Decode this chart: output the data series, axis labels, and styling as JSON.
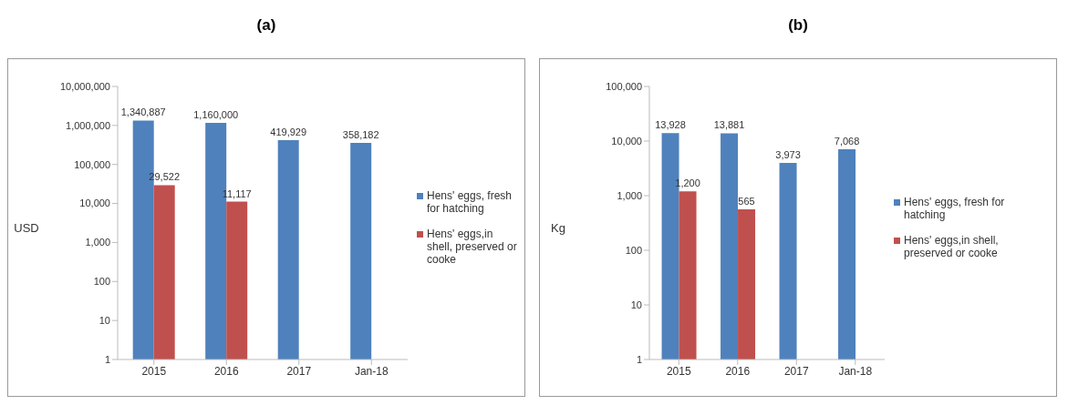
{
  "chart_data": [
    {
      "type": "bar",
      "title": "(a)",
      "ylabel": "USD",
      "categories": [
        "2015",
        "2016",
        "2017",
        "Jan-18"
      ],
      "series": [
        {
          "name": "Hens' eggs, fresh for hatching",
          "color": "#4f81bd",
          "values": [
            1340887,
            1160000,
            419929,
            358182
          ],
          "value_labels": [
            "1,340,887",
            "1,160,000",
            "419,929",
            "358,182"
          ]
        },
        {
          "name": "Hens' eggs,in shell, preserved or cooke",
          "color": "#c0504d",
          "values": [
            29522,
            11117,
            null,
            null
          ],
          "value_labels": [
            "29,522",
            "11,117",
            null,
            null
          ]
        }
      ],
      "log": "y",
      "ylim": [
        1,
        10000000
      ],
      "yticks": [
        1,
        {
          "value": 10,
          "label": "10"
        },
        {
          "value": 100,
          "label": "100"
        },
        {
          "value": 1000,
          "label": "1,000"
        },
        {
          "value": 10000,
          "label": "10,000"
        },
        {
          "value": 100000,
          "label": "100,000"
        },
        {
          "value": 1000000,
          "label": "1,000,000"
        },
        {
          "value": 10000000,
          "label": "10,000,000"
        }
      ],
      "legend": "right",
      "grid": false
    },
    {
      "type": "bar",
      "title": "(b)",
      "ylabel": "Kg",
      "categories": [
        "2015",
        "2016",
        "2017",
        "Jan-18"
      ],
      "series": [
        {
          "name": "Hens' eggs, fresh for hatching",
          "color": "#4f81bd",
          "values": [
            13928,
            13881,
            3973,
            7068
          ],
          "value_labels": [
            "13,928",
            "13,881",
            "3,973",
            "7,068"
          ]
        },
        {
          "name": "Hens' eggs,in shell, preserved or cooke",
          "color": "#c0504d",
          "values": [
            1200,
            565,
            null,
            null
          ],
          "value_labels": [
            "1,200",
            "565",
            null,
            null
          ]
        }
      ],
      "log": "y",
      "ylim": [
        1,
        100000
      ],
      "yticks": [
        1,
        {
          "value": 10,
          "label": "10"
        },
        {
          "value": 100,
          "label": "100"
        },
        {
          "value": 1000,
          "label": "1,000"
        },
        {
          "value": 10000,
          "label": "10,000"
        },
        {
          "value": 100000,
          "label": "100,000"
        }
      ],
      "legend": "right",
      "grid": false
    }
  ]
}
